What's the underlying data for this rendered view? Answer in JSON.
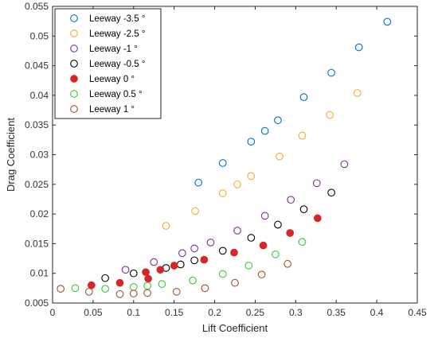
{
  "chart_data": {
    "type": "scatter",
    "xlabel": "Lift Coefficient",
    "ylabel": "Drag Coefficient",
    "xlim": [
      0,
      0.45
    ],
    "ylim": [
      0.005,
      0.055
    ],
    "xticks": [
      "0",
      "0.05",
      "0.1",
      "0.15",
      "0.2",
      "0.25",
      "0.3",
      "0.35",
      "0.4",
      "0.45"
    ],
    "yticks": [
      "0.005",
      "0.01",
      "0.015",
      "0.02",
      "0.025",
      "0.03",
      "0.035",
      "0.04",
      "0.045",
      "0.05",
      "0.055"
    ],
    "grid": false,
    "legend_position": "top-left",
    "series": [
      {
        "name": "Leeway -3.5 °",
        "color": "#0072BD",
        "filled": false,
        "points": [
          [
            0.18,
            0.0253
          ],
          [
            0.21,
            0.0286
          ],
          [
            0.245,
            0.0322
          ],
          [
            0.262,
            0.034
          ],
          [
            0.278,
            0.0358
          ],
          [
            0.31,
            0.0397
          ],
          [
            0.344,
            0.0438
          ],
          [
            0.378,
            0.0481
          ],
          [
            0.413,
            0.0524
          ]
        ]
      },
      {
        "name": "Leeway -2.5 °",
        "color": "#EDB120",
        "filled": false,
        "points": [
          [
            0.14,
            0.018
          ],
          [
            0.176,
            0.0205
          ],
          [
            0.21,
            0.0235
          ],
          [
            0.228,
            0.025
          ],
          [
            0.245,
            0.0264
          ],
          [
            0.28,
            0.0297
          ],
          [
            0.308,
            0.0332
          ],
          [
            0.342,
            0.0367
          ],
          [
            0.376,
            0.0404
          ]
        ]
      },
      {
        "name": "Leeway -1 °",
        "color": "#7E2F8E",
        "filled": false,
        "points": [
          [
            0.09,
            0.0106
          ],
          [
            0.125,
            0.0119
          ],
          [
            0.16,
            0.0134
          ],
          [
            0.175,
            0.0142
          ],
          [
            0.195,
            0.0152
          ],
          [
            0.228,
            0.0172
          ],
          [
            0.262,
            0.0197
          ],
          [
            0.294,
            0.0224
          ],
          [
            0.326,
            0.0252
          ],
          [
            0.36,
            0.0284
          ]
        ]
      },
      {
        "name": "Leeway -0.5 °",
        "color": "#000000",
        "filled": false,
        "points": [
          [
            0.065,
            0.0092
          ],
          [
            0.1,
            0.01
          ],
          [
            0.14,
            0.0109
          ],
          [
            0.158,
            0.0115
          ],
          [
            0.175,
            0.0122
          ],
          [
            0.21,
            0.0138
          ],
          [
            0.245,
            0.016
          ],
          [
            0.278,
            0.0182
          ],
          [
            0.31,
            0.0208
          ],
          [
            0.344,
            0.0236
          ]
        ]
      },
      {
        "name": "Leeway 0 °",
        "color": "#D62728",
        "filled": true,
        "points": [
          [
            0.048,
            0.008
          ],
          [
            0.083,
            0.0084
          ],
          [
            0.115,
            0.0102
          ],
          [
            0.118,
            0.0091
          ],
          [
            0.133,
            0.0106
          ],
          [
            0.15,
            0.0113
          ],
          [
            0.187,
            0.0123
          ],
          [
            0.224,
            0.0135
          ],
          [
            0.26,
            0.0147
          ],
          [
            0.293,
            0.0168
          ],
          [
            0.327,
            0.0193
          ]
        ]
      },
      {
        "name": "Leeway 0.5 °",
        "color": "#33CC33",
        "filled": false,
        "points": [
          [
            0.028,
            0.0075
          ],
          [
            0.065,
            0.0074
          ],
          [
            0.1,
            0.0077
          ],
          [
            0.117,
            0.0079
          ],
          [
            0.135,
            0.0082
          ],
          [
            0.173,
            0.0088
          ],
          [
            0.21,
            0.0099
          ],
          [
            0.242,
            0.0113
          ],
          [
            0.275,
            0.0132
          ],
          [
            0.308,
            0.0153
          ]
        ]
      },
      {
        "name": "Leeway 1 °",
        "color": "#A0522D",
        "filled": false,
        "points": [
          [
            0.01,
            0.0074
          ],
          [
            0.045,
            0.0069
          ],
          [
            0.083,
            0.0065
          ],
          [
            0.1,
            0.0066
          ],
          [
            0.117,
            0.0067
          ],
          [
            0.153,
            0.0069
          ],
          [
            0.188,
            0.0075
          ],
          [
            0.225,
            0.0084
          ],
          [
            0.258,
            0.0098
          ],
          [
            0.29,
            0.0116
          ]
        ]
      }
    ]
  }
}
